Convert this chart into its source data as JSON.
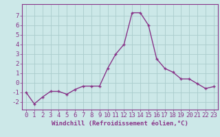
{
  "x": [
    0,
    1,
    2,
    3,
    4,
    5,
    6,
    7,
    8,
    9,
    10,
    11,
    12,
    13,
    14,
    15,
    16,
    17,
    18,
    19,
    20,
    21,
    22,
    23
  ],
  "y": [
    -1,
    -2.2,
    -1.5,
    -0.9,
    -0.9,
    -1.2,
    -0.7,
    -0.35,
    -0.35,
    -0.35,
    1.5,
    3.0,
    4.0,
    7.3,
    7.3,
    6.0,
    2.5,
    1.5,
    1.1,
    0.4,
    0.4,
    -0.1,
    -0.6,
    -0.4
  ],
  "line_color": "#883388",
  "marker": "+",
  "bg_color": "#cce8e8",
  "grid_color": "#aacccc",
  "xlabel": "Windchill (Refroidissement éolien,°C)",
  "xlim": [
    -0.5,
    23.5
  ],
  "ylim": [
    -2.8,
    8.2
  ],
  "yticks": [
    -2,
    -1,
    0,
    1,
    2,
    3,
    4,
    5,
    6,
    7
  ],
  "xticks": [
    0,
    1,
    2,
    3,
    4,
    5,
    6,
    7,
    8,
    9,
    10,
    11,
    12,
    13,
    14,
    15,
    16,
    17,
    18,
    19,
    20,
    21,
    22,
    23
  ],
  "axis_label_color": "#883388",
  "tick_color": "#883388",
  "font_size_xlabel": 6.5,
  "font_size_ticks": 6.5,
  "linewidth": 1.0,
  "markersize": 3.5,
  "markeredgewidth": 1.0
}
